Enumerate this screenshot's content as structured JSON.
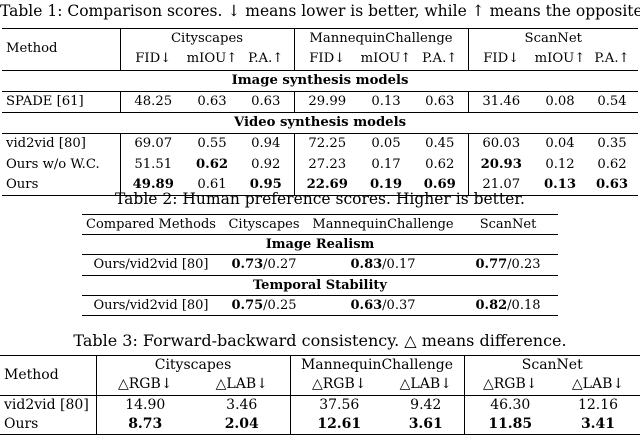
{
  "table1": {
    "caption": "Table 1: Comparison scores. ↓ means lower is better, while ↑ means the opposite.",
    "method_header": "Method",
    "groups": [
      "Cityscapes",
      "MannequinChallenge",
      "ScanNet"
    ],
    "metrics": [
      "FID↓",
      "mIOU↑",
      "P.A.↑"
    ],
    "section_image": "Image synthesis models",
    "section_video": "Video synthesis models",
    "rows": [
      {
        "method": "SPADE [61]",
        "values": [
          "48.25",
          "0.63",
          "0.63",
          "29.99",
          "0.13",
          "0.63",
          "31.46",
          "0.08",
          "0.54"
        ],
        "bold": [
          false,
          false,
          false,
          false,
          false,
          false,
          false,
          false,
          false
        ]
      },
      {
        "method": "vid2vid [80]",
        "values": [
          "69.07",
          "0.55",
          "0.94",
          "72.25",
          "0.05",
          "0.45",
          "60.03",
          "0.04",
          "0.35"
        ],
        "bold": [
          false,
          false,
          false,
          false,
          false,
          false,
          false,
          false,
          false
        ]
      },
      {
        "method": "Ours w/o W.C.",
        "values": [
          "51.51",
          "0.62",
          "0.92",
          "27.23",
          "0.17",
          "0.62",
          "20.93",
          "0.12",
          "0.62"
        ],
        "bold": [
          false,
          true,
          false,
          false,
          false,
          false,
          true,
          false,
          false
        ]
      },
      {
        "method": "Ours",
        "values": [
          "49.89",
          "0.61",
          "0.95",
          "22.69",
          "0.19",
          "0.69",
          "21.07",
          "0.13",
          "0.63"
        ],
        "bold": [
          true,
          false,
          true,
          true,
          true,
          true,
          false,
          true,
          true
        ]
      }
    ]
  },
  "table2": {
    "caption": "Table 2: Human preference scores. Higher is better.",
    "header": [
      "Compared Methods",
      "Cityscapes",
      "MannequinChallenge",
      "ScanNet"
    ],
    "section_realism": "Image Realism",
    "section_stability": "Temporal Stability",
    "realism": {
      "method": "Ours/vid2vid [80]",
      "values": [
        [
          "0.73",
          "/0.27"
        ],
        [
          "0.83",
          "/0.17"
        ],
        [
          "0.77",
          "/0.23"
        ]
      ]
    },
    "stability": {
      "method": "Ours/vid2vid [80]",
      "values": [
        [
          "0.75",
          "/0.25"
        ],
        [
          "0.63",
          "/0.37"
        ],
        [
          "0.82",
          "/0.18"
        ]
      ]
    }
  },
  "table3": {
    "caption": "Table 3: Forward-backward consistency. △ means difference.",
    "method_header": "Method",
    "groups": [
      "Cityscapes",
      "MannequinChallenge",
      "ScanNet"
    ],
    "metrics": [
      "△RGB↓",
      "△LAB↓"
    ],
    "rows": [
      {
        "method": "vid2vid [80]",
        "values": [
          "14.90",
          "3.46",
          "37.56",
          "9.42",
          "46.30",
          "12.16"
        ],
        "bold": [
          false,
          false,
          false,
          false,
          false,
          false
        ]
      },
      {
        "method": "Ours",
        "values": [
          "8.73",
          "2.04",
          "12.61",
          "3.61",
          "11.85",
          "3.41"
        ],
        "bold": [
          true,
          true,
          true,
          true,
          true,
          true
        ]
      }
    ]
  }
}
